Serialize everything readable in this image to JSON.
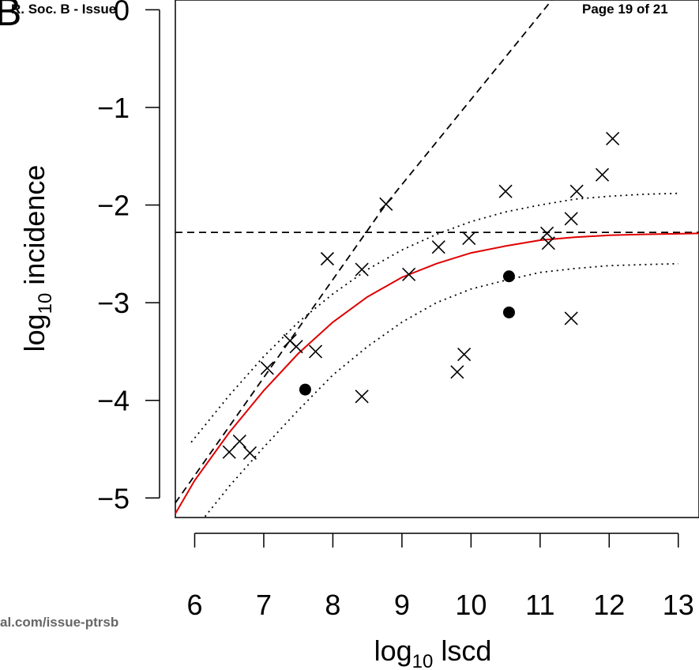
{
  "header": {
    "left": "R. Soc. B - Issue",
    "right": "Page 19 of 21",
    "panel_letter": "B"
  },
  "footer": {
    "url": "al.com/issue-ptrsb"
  },
  "chart_data": {
    "type": "scatter",
    "title": "",
    "xlabel_base": "log",
    "xlabel_sub": "10",
    "xlabel_rest": " lscd",
    "ylabel_base": "log",
    "ylabel_sub": "10",
    "ylabel_rest": " incidence",
    "xlim": [
      5.72,
      13.3
    ],
    "ylim": [
      -5.2,
      0.1
    ],
    "xticks": [
      6,
      7,
      8,
      9,
      10,
      11,
      12,
      13
    ],
    "yticks": [
      0,
      -1,
      -2,
      -3,
      -4,
      -5
    ],
    "grid": false,
    "series": [
      {
        "marker": "cross",
        "points": [
          [
            6.5,
            -4.53
          ],
          [
            6.65,
            -4.42
          ],
          [
            6.8,
            -4.54
          ],
          [
            7.05,
            -3.67
          ],
          [
            7.38,
            -3.39
          ],
          [
            7.47,
            -3.45
          ],
          [
            7.75,
            -3.5
          ],
          [
            7.92,
            -2.55
          ],
          [
            8.42,
            -3.96
          ],
          [
            8.42,
            -2.66
          ],
          [
            8.77,
            -1.99
          ],
          [
            9.1,
            -2.71
          ],
          [
            9.53,
            -2.43
          ],
          [
            9.8,
            -3.71
          ],
          [
            9.9,
            -3.53
          ],
          [
            9.97,
            -2.34
          ],
          [
            10.5,
            -1.86
          ],
          [
            11.1,
            -2.29
          ],
          [
            11.12,
            -2.39
          ],
          [
            11.45,
            -2.14
          ],
          [
            11.45,
            -3.16
          ],
          [
            11.53,
            -1.86
          ],
          [
            11.9,
            -1.69
          ],
          [
            12.05,
            -1.32
          ]
        ]
      },
      {
        "marker": "filled-circle",
        "points": [
          [
            7.6,
            -3.89
          ],
          [
            10.55,
            -2.73
          ],
          [
            10.55,
            -3.1
          ]
        ]
      }
    ],
    "lines": [
      {
        "style": "dashed",
        "color": "#000000",
        "kind": "diagonal",
        "points": [
          [
            5.72,
            -5.05
          ],
          [
            8.77,
            -1.99
          ],
          [
            11.17,
            0.4
          ]
        ]
      },
      {
        "style": "dashed",
        "color": "#000000",
        "kind": "horizontal",
        "y": -2.28
      },
      {
        "style": "solid",
        "color": "#e00000",
        "kind": "fit",
        "points": [
          [
            5.72,
            -5.16
          ],
          [
            6.0,
            -4.82
          ],
          [
            6.5,
            -4.33
          ],
          [
            7.0,
            -3.9
          ],
          [
            7.5,
            -3.52
          ],
          [
            8.0,
            -3.2
          ],
          [
            8.5,
            -2.94
          ],
          [
            9.0,
            -2.74
          ],
          [
            9.5,
            -2.6
          ],
          [
            10.0,
            -2.49
          ],
          [
            10.5,
            -2.42
          ],
          [
            11.0,
            -2.36
          ],
          [
            11.5,
            -2.33
          ],
          [
            12.0,
            -2.31
          ],
          [
            12.5,
            -2.3
          ],
          [
            13.3,
            -2.29
          ]
        ]
      },
      {
        "style": "dotted",
        "color": "#000000",
        "kind": "upper-band",
        "points": [
          [
            5.95,
            -4.43
          ],
          [
            6.5,
            -3.95
          ],
          [
            7.0,
            -3.55
          ],
          [
            7.5,
            -3.2
          ],
          [
            8.0,
            -2.91
          ],
          [
            8.5,
            -2.66
          ],
          [
            9.0,
            -2.46
          ],
          [
            9.5,
            -2.3
          ],
          [
            10.0,
            -2.17
          ],
          [
            10.5,
            -2.07
          ],
          [
            11.0,
            -2.0
          ],
          [
            11.5,
            -1.94
          ],
          [
            12.0,
            -1.91
          ],
          [
            12.5,
            -1.89
          ],
          [
            13.0,
            -1.88
          ]
        ]
      },
      {
        "style": "dotted",
        "color": "#000000",
        "kind": "lower-band",
        "points": [
          [
            6.15,
            -5.19
          ],
          [
            6.5,
            -4.88
          ],
          [
            7.0,
            -4.48
          ],
          [
            7.5,
            -4.1
          ],
          [
            8.0,
            -3.74
          ],
          [
            8.5,
            -3.45
          ],
          [
            9.0,
            -3.2
          ],
          [
            9.5,
            -3.0
          ],
          [
            10.0,
            -2.86
          ],
          [
            10.5,
            -2.77
          ],
          [
            11.0,
            -2.69
          ],
          [
            11.5,
            -2.65
          ],
          [
            12.0,
            -2.62
          ],
          [
            12.5,
            -2.61
          ],
          [
            13.0,
            -2.6
          ]
        ]
      }
    ]
  }
}
